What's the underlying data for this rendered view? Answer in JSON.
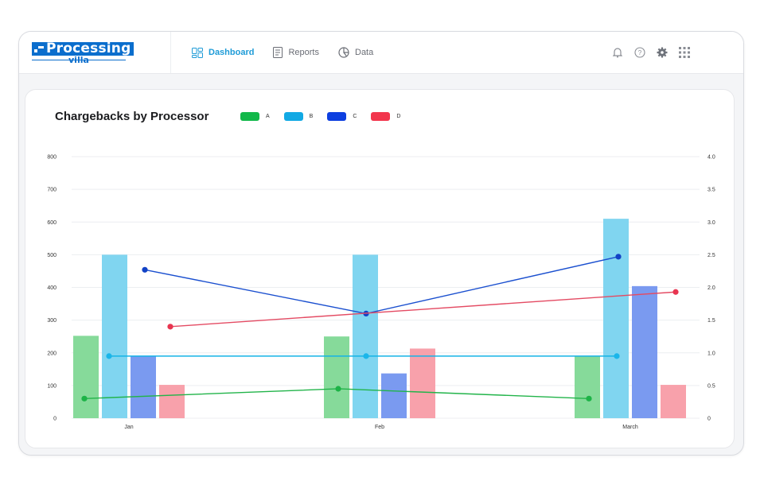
{
  "logo": {
    "word": "Processing",
    "sub": "villa"
  },
  "nav": [
    {
      "label": "Dashboard",
      "active": true,
      "icon": "dashboard-grid-icon"
    },
    {
      "label": "Reports",
      "active": false,
      "icon": "report-document-icon"
    },
    {
      "label": "Data",
      "active": false,
      "icon": "pie-chart-icon"
    }
  ],
  "actions": [
    "bell-icon",
    "help-icon",
    "gear-icon",
    "apps-grid-icon"
  ],
  "colors": {
    "accent": "#1e9bd7",
    "A": "#2dbb50",
    "B": "#12a9e4",
    "C": "#1551d8",
    "D": "#f2364d"
  },
  "chart_data": {
    "type": "bar",
    "title": "Chargebacks by Processor",
    "categories": [
      "Jan",
      "Feb",
      "March"
    ],
    "series": [
      {
        "name": "A",
        "values": [
          252,
          250,
          190
        ]
      },
      {
        "name": "B",
        "values": [
          500,
          500,
          610
        ]
      },
      {
        "name": "C",
        "values": [
          190,
          137,
          404
        ]
      },
      {
        "name": "D",
        "values": [
          102,
          213,
          102
        ]
      }
    ],
    "line_series": [
      {
        "name": "A",
        "values": [
          0.3,
          0.45,
          0.3
        ]
      },
      {
        "name": "B",
        "values": [
          0.95,
          0.95,
          0.95
        ]
      },
      {
        "name": "C",
        "values": [
          2.27,
          1.6,
          2.47
        ]
      },
      {
        "name": "D",
        "values": [
          1.4,
          null,
          1.93
        ]
      }
    ],
    "y_ticks": [
      "0",
      "100",
      "200",
      "300",
      "400",
      "500",
      "600",
      "700",
      "800"
    ],
    "y2_ticks": [
      "0",
      "0.5",
      "1.0",
      "1.5",
      "2.0",
      "2.5",
      "3.0",
      "3.5",
      "4.0"
    ],
    "ylim": [
      0,
      800
    ],
    "y2lim": [
      0,
      4
    ],
    "grid": true,
    "legend": "top"
  }
}
